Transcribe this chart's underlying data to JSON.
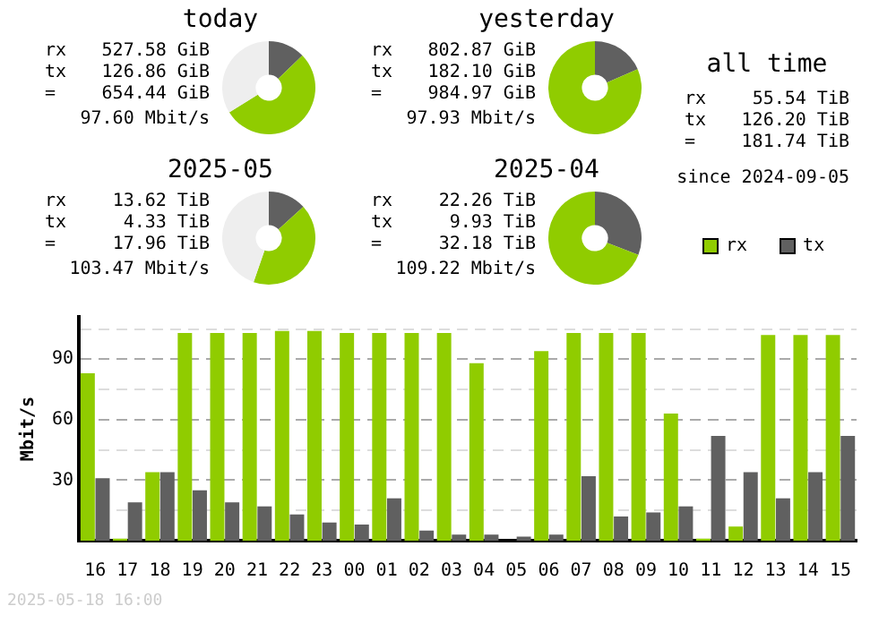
{
  "chart_data": [
    {
      "type": "donut",
      "title": "today",
      "categories": [
        null,
        null,
        null
      ],
      "values": [
        12.8,
        53.3,
        33.9
      ],
      "colors": [
        "#606060",
        "#90cc00",
        "#eeeeee"
      ],
      "annotations": [
        "rx 527.58 GiB",
        "tx 126.86 GiB",
        "= 654.44 GiB",
        "97.60 Mbit/s"
      ]
    },
    {
      "type": "donut",
      "title": "yesterday",
      "categories": [
        null,
        null,
        null
      ],
      "values": [
        18.5,
        81.5,
        0
      ],
      "colors": [
        "#606060",
        "#90cc00",
        "#eeeeee"
      ],
      "annotations": [
        "rx 802.87 GiB",
        "tx 182.10 GiB",
        "= 984.97 GiB",
        "97.93 Mbit/s"
      ]
    },
    {
      "type": "donut",
      "title": "2025-05",
      "categories": [
        null,
        null,
        null
      ],
      "values": [
        13.3,
        42.0,
        44.7
      ],
      "colors": [
        "#606060",
        "#90cc00",
        "#eeeeee"
      ],
      "annotations": [
        "rx 13.62 TiB",
        "tx 4.33 TiB",
        "= 17.96 TiB",
        "103.47 Mbit/s"
      ]
    },
    {
      "type": "donut",
      "title": "2025-04",
      "categories": [
        null,
        null,
        null
      ],
      "values": [
        30.9,
        69.1,
        0
      ],
      "colors": [
        "#606060",
        "#90cc00",
        "#eeeeee"
      ],
      "annotations": [
        "rx 22.26 TiB",
        "tx 9.93 TiB",
        "= 32.18 TiB",
        "109.22 Mbit/s"
      ]
    },
    {
      "type": "other",
      "title": "all time",
      "annotations": [
        "rx 55.54 TiB",
        "tx 126.20 TiB",
        "= 181.74 TiB",
        "since 2024-09-05"
      ]
    },
    {
      "type": "bar",
      "ylabel": "Mbit/s",
      "legend": "top right",
      "grid": "y",
      "categories": [
        "16",
        "17",
        "18",
        "19",
        "20",
        "21",
        "22",
        "23",
        "00",
        "01",
        "02",
        "03",
        "04",
        "05",
        "06",
        "07",
        "08",
        "09",
        "10",
        "11",
        "12",
        "13",
        "14",
        "15"
      ],
      "series": [
        {
          "name": "rx",
          "color": "#90cc00",
          "values": [
            83,
            1,
            34,
            103,
            103,
            103,
            104,
            104,
            103,
            103,
            103,
            103,
            88,
            0,
            94,
            103,
            103,
            103,
            63,
            1,
            7,
            102,
            102,
            102
          ]
        },
        {
          "name": "tx",
          "color": "#606060",
          "values": [
            31,
            19,
            34,
            25,
            19,
            17,
            13,
            9,
            8,
            21,
            5,
            3,
            3,
            2,
            3,
            32,
            12,
            14,
            17,
            52,
            34,
            21,
            34,
            52
          ]
        }
      ],
      "ylim": [
        0,
        111
      ],
      "yticks": [
        {
          "value": 15,
          "label": null
        },
        30,
        {
          "value": 45,
          "label": null
        },
        60,
        {
          "value": 75,
          "label": null
        },
        90,
        {
          "value": 105,
          "label": null
        }
      ],
      "annotations": [
        "2025-05-18 16:00"
      ]
    }
  ]
}
